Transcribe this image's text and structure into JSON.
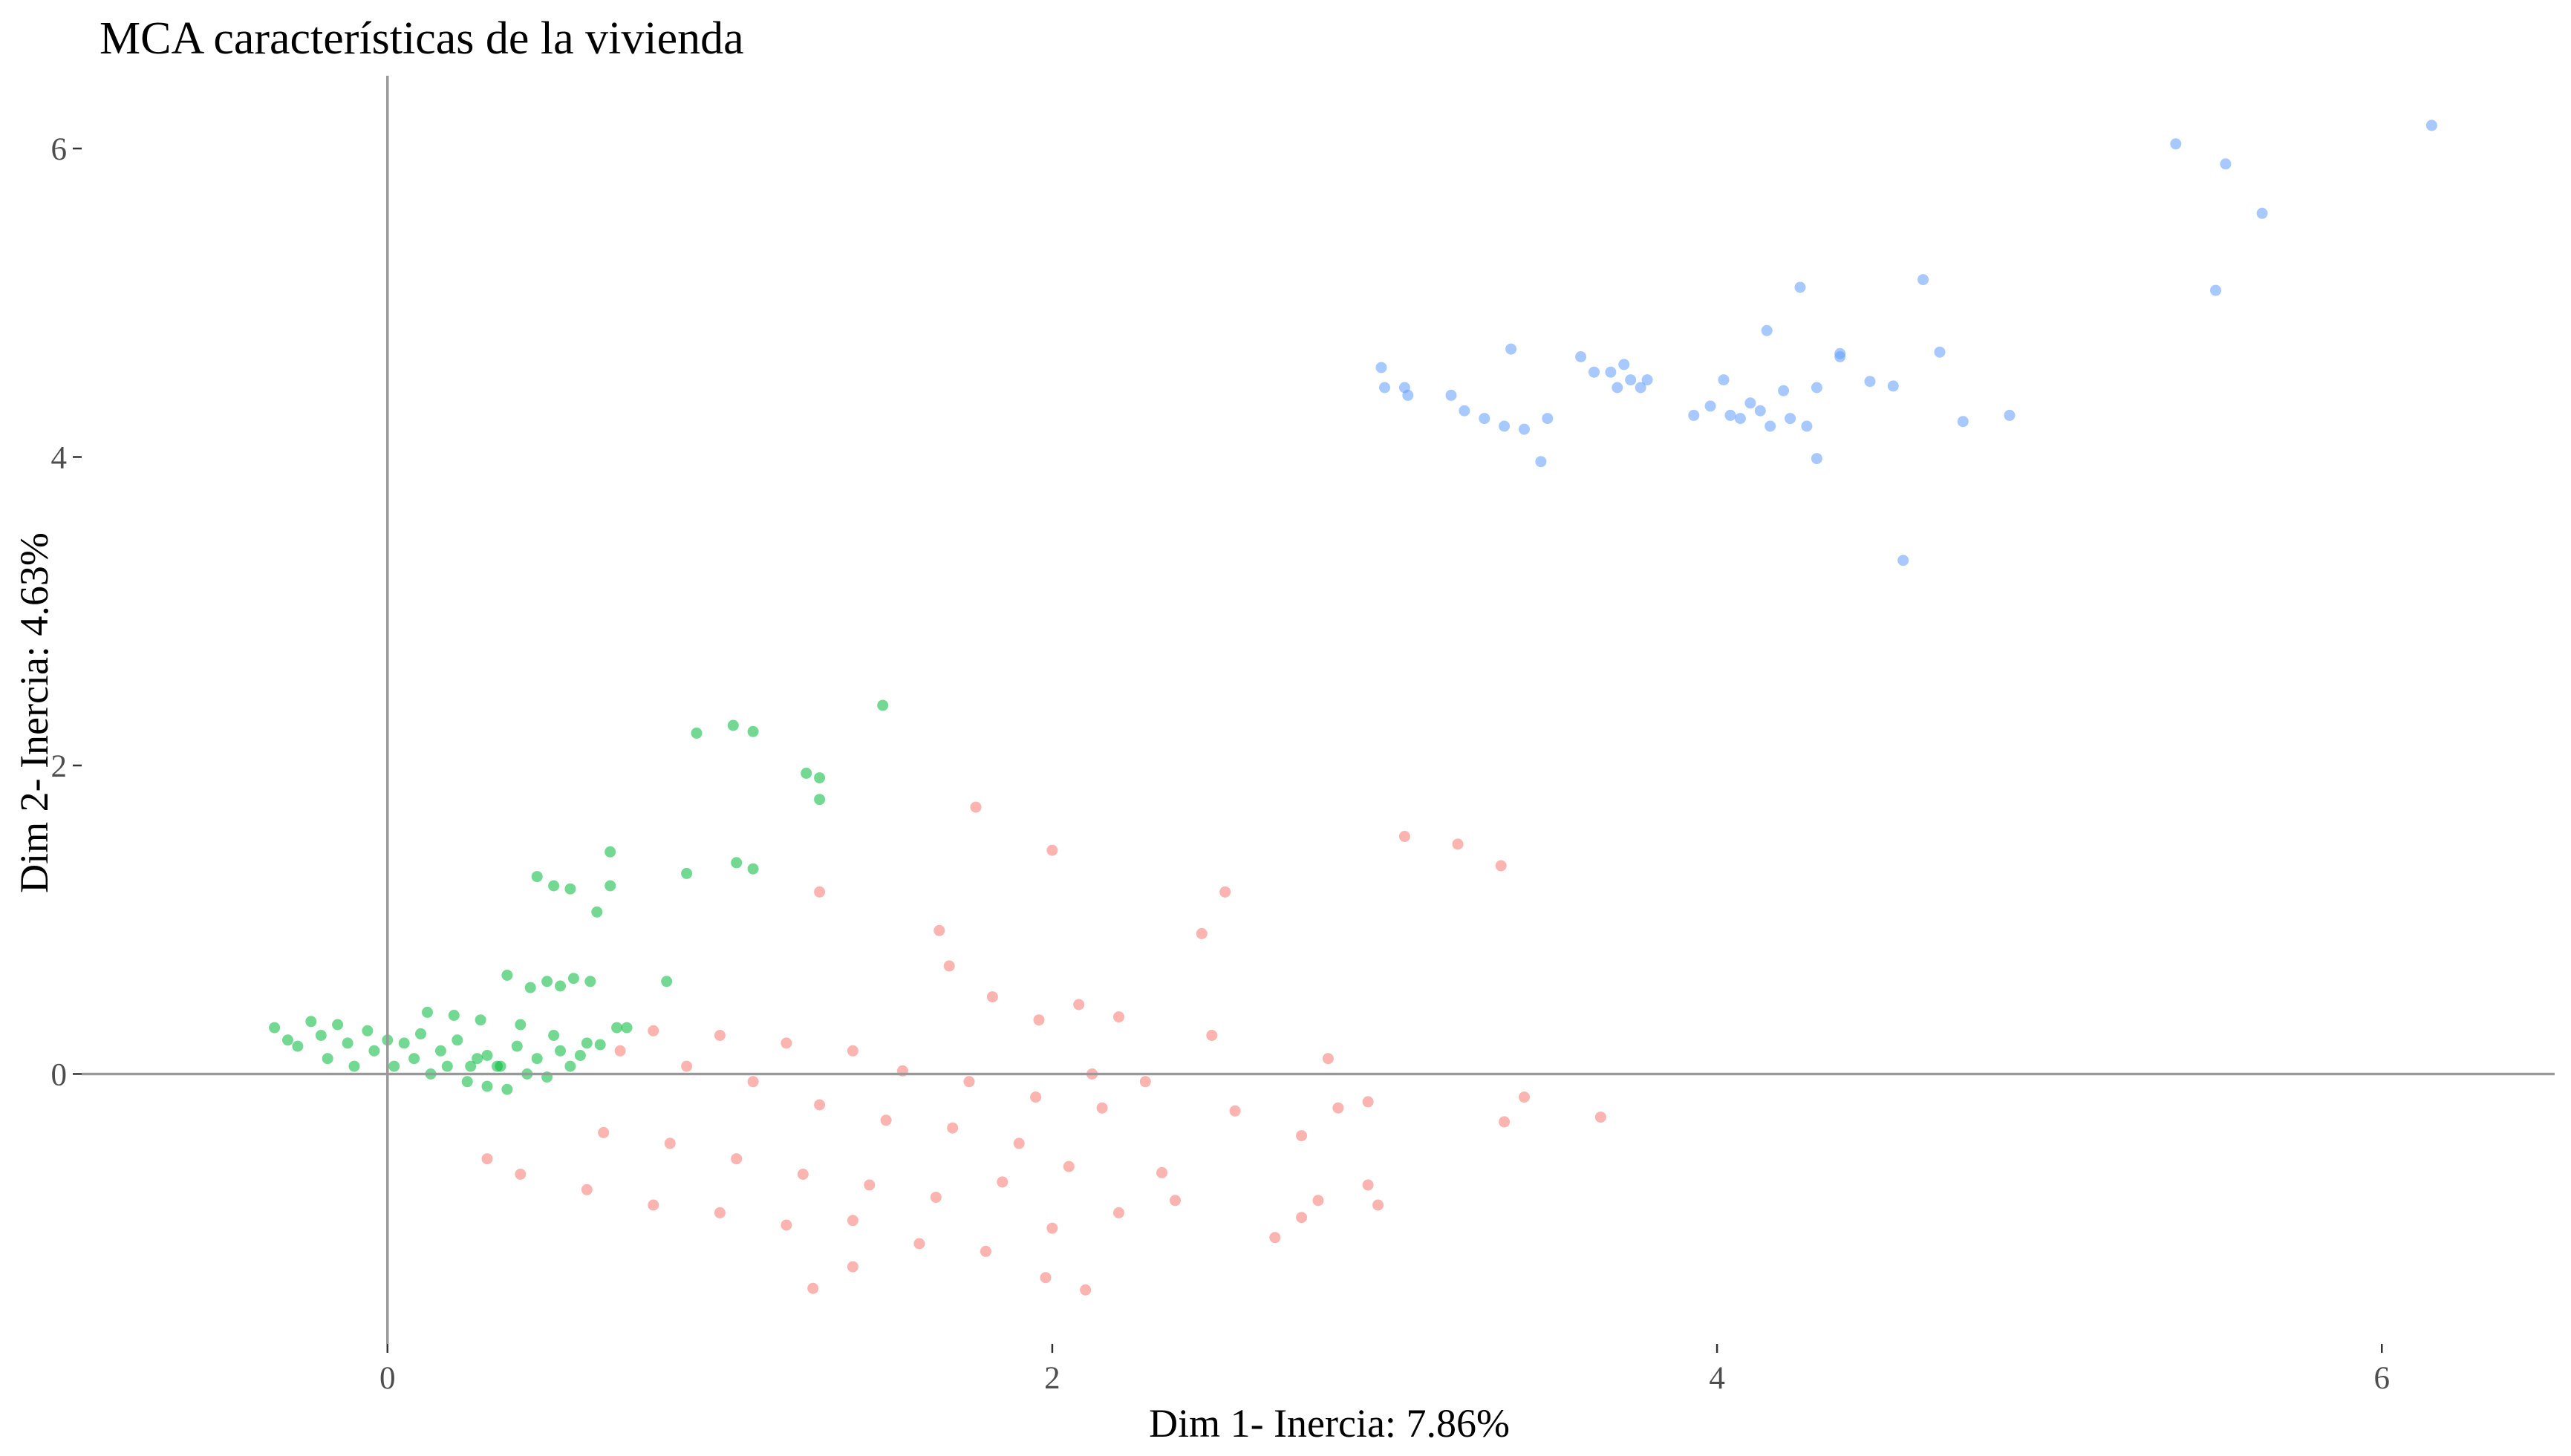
{
  "chart_data": {
    "type": "scatter",
    "title": "MCA características de la vivienda",
    "xlabel": "Dim 1- Inercia: 7.86%",
    "ylabel": "Dim 2- Inercia: 4.63%",
    "xlim": [
      -0.92,
      6.52
    ],
    "ylim": [
      -1.75,
      6.52
    ],
    "x_ticks": [
      0,
      2,
      4,
      6
    ],
    "y_ticks": [
      0,
      2,
      4,
      6
    ],
    "reference_lines": {
      "x": 0,
      "y": 0
    },
    "grid": false,
    "legend": "none",
    "point_opacity": 0.55,
    "series": [
      {
        "color": "#00BA38",
        "points": [
          [
            0.93,
            2.21
          ],
          [
            1.04,
            2.26
          ],
          [
            1.1,
            2.22
          ],
          [
            1.26,
            1.95
          ],
          [
            1.3,
            1.92
          ],
          [
            1.3,
            1.78
          ],
          [
            1.49,
            2.39
          ],
          [
            0.45,
            1.28
          ],
          [
            0.5,
            1.22
          ],
          [
            0.55,
            1.2
          ],
          [
            0.67,
            1.44
          ],
          [
            0.67,
            1.22
          ],
          [
            0.63,
            1.05
          ],
          [
            0.9,
            1.3
          ],
          [
            1.05,
            1.37
          ],
          [
            1.1,
            1.33
          ],
          [
            0.84,
            0.6
          ],
          [
            0.36,
            0.64
          ],
          [
            0.43,
            0.56
          ],
          [
            0.48,
            0.6
          ],
          [
            0.52,
            0.57
          ],
          [
            0.56,
            0.62
          ],
          [
            0.61,
            0.6
          ],
          [
            0.69,
            0.3
          ],
          [
            0.72,
            0.3
          ],
          [
            0.6,
            0.2
          ],
          [
            0.64,
            0.19
          ],
          [
            0.12,
            0.4
          ],
          [
            0.2,
            0.38
          ],
          [
            0.28,
            0.35
          ],
          [
            0.3,
            0.12
          ],
          [
            0.4,
            0.32
          ],
          [
            0.34,
            0.05
          ],
          [
            0.5,
            0.25
          ],
          [
            0.25,
            0.05
          ],
          [
            -0.34,
            0.3
          ],
          [
            -0.3,
            0.22
          ],
          [
            -0.27,
            0.18
          ],
          [
            -0.23,
            0.34
          ],
          [
            -0.2,
            0.25
          ],
          [
            -0.18,
            0.1
          ],
          [
            -0.15,
            0.32
          ],
          [
            -0.12,
            0.2
          ],
          [
            -0.1,
            0.05
          ],
          [
            -0.06,
            0.28
          ],
          [
            -0.04,
            0.15
          ],
          [
            0.0,
            0.22
          ],
          [
            0.02,
            0.05
          ],
          [
            0.05,
            0.2
          ],
          [
            0.08,
            0.1
          ],
          [
            0.1,
            0.26
          ],
          [
            0.13,
            0.0
          ],
          [
            0.16,
            0.15
          ],
          [
            0.18,
            0.05
          ],
          [
            0.21,
            0.22
          ],
          [
            0.24,
            -0.05
          ],
          [
            0.27,
            0.1
          ],
          [
            0.3,
            -0.08
          ],
          [
            0.33,
            0.05
          ],
          [
            0.36,
            -0.1
          ],
          [
            0.39,
            0.18
          ],
          [
            0.42,
            0.0
          ],
          [
            0.45,
            0.1
          ],
          [
            0.48,
            -0.02
          ],
          [
            0.52,
            0.15
          ],
          [
            0.55,
            0.05
          ],
          [
            0.58,
            0.12
          ]
        ]
      },
      {
        "color": "#F8766D",
        "points": [
          [
            1.77,
            1.73
          ],
          [
            2.0,
            1.45
          ],
          [
            1.3,
            1.18
          ],
          [
            1.66,
            0.93
          ],
          [
            1.69,
            0.7
          ],
          [
            2.52,
            1.18
          ],
          [
            2.45,
            0.91
          ],
          [
            3.06,
            1.54
          ],
          [
            3.22,
            1.49
          ],
          [
            3.35,
            1.35
          ],
          [
            3.42,
            -0.15
          ],
          [
            3.36,
            -0.31
          ],
          [
            3.65,
            -0.28
          ],
          [
            2.83,
            0.1
          ],
          [
            2.55,
            -0.24
          ],
          [
            2.75,
            -0.4
          ],
          [
            2.8,
            -0.82
          ],
          [
            2.95,
            -0.72
          ],
          [
            2.98,
            -0.85
          ],
          [
            2.86,
            -0.22
          ],
          [
            2.95,
            -0.18
          ],
          [
            1.28,
            -1.39
          ],
          [
            2.1,
            -1.4
          ],
          [
            1.98,
            -1.32
          ],
          [
            1.4,
            -1.25
          ],
          [
            2.67,
            -1.06
          ],
          [
            2.75,
            -0.93
          ],
          [
            1.82,
            0.5
          ],
          [
            1.96,
            0.35
          ],
          [
            2.08,
            0.45
          ],
          [
            2.2,
            0.37
          ],
          [
            2.48,
            0.25
          ],
          [
            2.12,
            0.0
          ],
          [
            2.28,
            -0.05
          ],
          [
            2.33,
            -0.64
          ],
          [
            2.37,
            -0.82
          ],
          [
            2.2,
            -0.9
          ],
          [
            2.0,
            -1.0
          ],
          [
            1.8,
            -1.15
          ],
          [
            1.6,
            -1.1
          ],
          [
            1.4,
            -0.95
          ],
          [
            1.2,
            -0.98
          ],
          [
            1.0,
            -0.9
          ],
          [
            0.8,
            -0.85
          ],
          [
            0.6,
            -0.75
          ],
          [
            0.4,
            -0.65
          ],
          [
            0.3,
            -0.55
          ],
          [
            1.9,
            -0.45
          ],
          [
            1.7,
            -0.35
          ],
          [
            1.5,
            -0.3
          ],
          [
            1.3,
            -0.2
          ],
          [
            1.1,
            -0.05
          ],
          [
            0.9,
            0.05
          ],
          [
            0.7,
            0.15
          ],
          [
            1.4,
            0.15
          ],
          [
            1.2,
            0.2
          ],
          [
            1.0,
            0.25
          ],
          [
            0.8,
            0.28
          ],
          [
            2.05,
            -0.6
          ],
          [
            1.85,
            -0.7
          ],
          [
            1.65,
            -0.8
          ],
          [
            1.45,
            -0.72
          ],
          [
            1.25,
            -0.65
          ],
          [
            1.05,
            -0.55
          ],
          [
            0.85,
            -0.45
          ],
          [
            0.65,
            -0.38
          ],
          [
            2.15,
            -0.22
          ],
          [
            1.95,
            -0.15
          ],
          [
            1.75,
            -0.05
          ],
          [
            1.55,
            0.02
          ]
        ]
      },
      {
        "color": "#619CFF",
        "points": [
          [
            5.38,
            6.03
          ],
          [
            5.53,
            5.9
          ],
          [
            5.64,
            5.58
          ],
          [
            5.5,
            5.08
          ],
          [
            6.15,
            6.15
          ],
          [
            4.62,
            5.15
          ],
          [
            4.25,
            5.1
          ],
          [
            4.15,
            4.82
          ],
          [
            4.67,
            4.68
          ],
          [
            4.37,
            4.67
          ],
          [
            4.37,
            4.65
          ],
          [
            4.46,
            4.49
          ],
          [
            4.53,
            4.46
          ],
          [
            4.3,
            4.45
          ],
          [
            4.2,
            4.43
          ],
          [
            4.88,
            4.27
          ],
          [
            4.74,
            4.23
          ],
          [
            4.27,
            4.2
          ],
          [
            4.22,
            4.25
          ],
          [
            4.56,
            3.33
          ],
          [
            4.3,
            3.99
          ],
          [
            2.99,
            4.58
          ],
          [
            3.0,
            4.45
          ],
          [
            3.06,
            4.45
          ],
          [
            3.07,
            4.4
          ],
          [
            3.2,
            4.4
          ],
          [
            3.24,
            4.3
          ],
          [
            3.3,
            4.25
          ],
          [
            3.36,
            4.2
          ],
          [
            3.38,
            4.7
          ],
          [
            3.42,
            4.18
          ],
          [
            3.47,
            3.97
          ],
          [
            3.49,
            4.25
          ],
          [
            3.59,
            4.65
          ],
          [
            3.63,
            4.55
          ],
          [
            3.68,
            4.55
          ],
          [
            3.72,
            4.6
          ],
          [
            3.7,
            4.45
          ],
          [
            3.74,
            4.5
          ],
          [
            3.77,
            4.45
          ],
          [
            3.79,
            4.5
          ],
          [
            3.93,
            4.27
          ],
          [
            3.98,
            4.33
          ],
          [
            4.02,
            4.5
          ],
          [
            4.04,
            4.27
          ],
          [
            4.07,
            4.25
          ],
          [
            4.1,
            4.35
          ],
          [
            4.13,
            4.3
          ],
          [
            4.16,
            4.2
          ]
        ]
      }
    ]
  }
}
